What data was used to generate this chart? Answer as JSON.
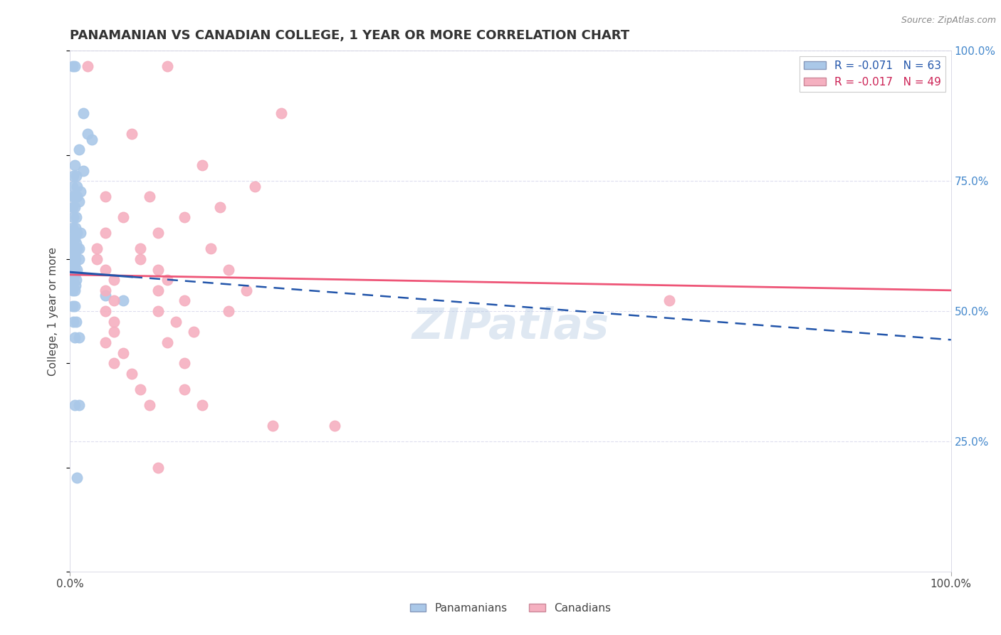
{
  "title": "PANAMANIAN VS CANADIAN COLLEGE, 1 YEAR OR MORE CORRELATION CHART",
  "source": "Source: ZipAtlas.com",
  "ylabel": "College, 1 year or more",
  "legend_labels": [
    "Panamanians",
    "Canadians"
  ],
  "r_blue": -0.071,
  "n_blue": 63,
  "r_pink": -0.017,
  "n_pink": 49,
  "blue_color": "#aac8e8",
  "pink_color": "#f5b0c0",
  "blue_line_color": "#2255aa",
  "pink_line_color": "#ee5577",
  "blue_scatter": [
    [
      0.3,
      97
    ],
    [
      0.5,
      97
    ],
    [
      1.5,
      88
    ],
    [
      2.0,
      84
    ],
    [
      2.5,
      83
    ],
    [
      1.0,
      81
    ],
    [
      0.5,
      78
    ],
    [
      1.5,
      77
    ],
    [
      0.4,
      76
    ],
    [
      0.7,
      76
    ],
    [
      0.3,
      74
    ],
    [
      0.8,
      74
    ],
    [
      1.2,
      73
    ],
    [
      0.3,
      72
    ],
    [
      0.5,
      72
    ],
    [
      0.8,
      72
    ],
    [
      1.0,
      71
    ],
    [
      0.3,
      70
    ],
    [
      0.5,
      70
    ],
    [
      0.4,
      68
    ],
    [
      0.7,
      68
    ],
    [
      0.3,
      66
    ],
    [
      0.6,
      66
    ],
    [
      0.4,
      65
    ],
    [
      0.8,
      65
    ],
    [
      1.2,
      65
    ],
    [
      0.3,
      64
    ],
    [
      0.5,
      64
    ],
    [
      0.4,
      63
    ],
    [
      0.7,
      63
    ],
    [
      0.3,
      62
    ],
    [
      0.5,
      62
    ],
    [
      0.8,
      62
    ],
    [
      1.0,
      62
    ],
    [
      0.3,
      61
    ],
    [
      0.5,
      61
    ],
    [
      0.3,
      60
    ],
    [
      0.6,
      60
    ],
    [
      1.0,
      60
    ],
    [
      0.3,
      59
    ],
    [
      0.5,
      59
    ],
    [
      0.3,
      58
    ],
    [
      0.5,
      58
    ],
    [
      0.8,
      58
    ],
    [
      0.3,
      57
    ],
    [
      0.5,
      57
    ],
    [
      0.4,
      56
    ],
    [
      0.7,
      56
    ],
    [
      0.3,
      55
    ],
    [
      0.6,
      55
    ],
    [
      0.3,
      54
    ],
    [
      0.5,
      54
    ],
    [
      4.0,
      53
    ],
    [
      6.0,
      52
    ],
    [
      0.3,
      51
    ],
    [
      0.5,
      51
    ],
    [
      0.4,
      48
    ],
    [
      0.7,
      48
    ],
    [
      0.5,
      45
    ],
    [
      1.0,
      45
    ],
    [
      0.5,
      32
    ],
    [
      1.0,
      32
    ],
    [
      0.8,
      18
    ]
  ],
  "pink_scatter": [
    [
      2.0,
      97
    ],
    [
      11.0,
      97
    ],
    [
      24.0,
      88
    ],
    [
      7.0,
      84
    ],
    [
      15.0,
      78
    ],
    [
      21.0,
      74
    ],
    [
      4.0,
      72
    ],
    [
      9.0,
      72
    ],
    [
      17.0,
      70
    ],
    [
      6.0,
      68
    ],
    [
      13.0,
      68
    ],
    [
      4.0,
      65
    ],
    [
      10.0,
      65
    ],
    [
      3.0,
      62
    ],
    [
      8.0,
      62
    ],
    [
      16.0,
      62
    ],
    [
      3.0,
      60
    ],
    [
      8.0,
      60
    ],
    [
      4.0,
      58
    ],
    [
      10.0,
      58
    ],
    [
      18.0,
      58
    ],
    [
      5.0,
      56
    ],
    [
      11.0,
      56
    ],
    [
      4.0,
      54
    ],
    [
      10.0,
      54
    ],
    [
      20.0,
      54
    ],
    [
      5.0,
      52
    ],
    [
      13.0,
      52
    ],
    [
      4.0,
      50
    ],
    [
      10.0,
      50
    ],
    [
      18.0,
      50
    ],
    [
      5.0,
      48
    ],
    [
      12.0,
      48
    ],
    [
      5.0,
      46
    ],
    [
      14.0,
      46
    ],
    [
      4.0,
      44
    ],
    [
      11.0,
      44
    ],
    [
      6.0,
      42
    ],
    [
      5.0,
      40
    ],
    [
      13.0,
      40
    ],
    [
      7.0,
      38
    ],
    [
      8.0,
      35
    ],
    [
      13.0,
      35
    ],
    [
      9.0,
      32
    ],
    [
      15.0,
      32
    ],
    [
      23.0,
      28
    ],
    [
      30.0,
      28
    ],
    [
      68.0,
      52
    ],
    [
      10.0,
      20
    ]
  ],
  "xlim": [
    0,
    100
  ],
  "ylim": [
    0,
    100
  ],
  "ytick_right_values": [
    25,
    50,
    75,
    100
  ],
  "blue_line_x0": 0,
  "blue_line_y0": 57.5,
  "blue_line_x1": 100,
  "blue_line_y1": 44.5,
  "blue_solid_x1": 7,
  "pink_line_x0": 0,
  "pink_line_y0": 57.0,
  "pink_line_x1": 100,
  "pink_line_y1": 54.0,
  "watermark": "ZIPatlas",
  "background_color": "#ffffff",
  "grid_color": "#ddddee"
}
